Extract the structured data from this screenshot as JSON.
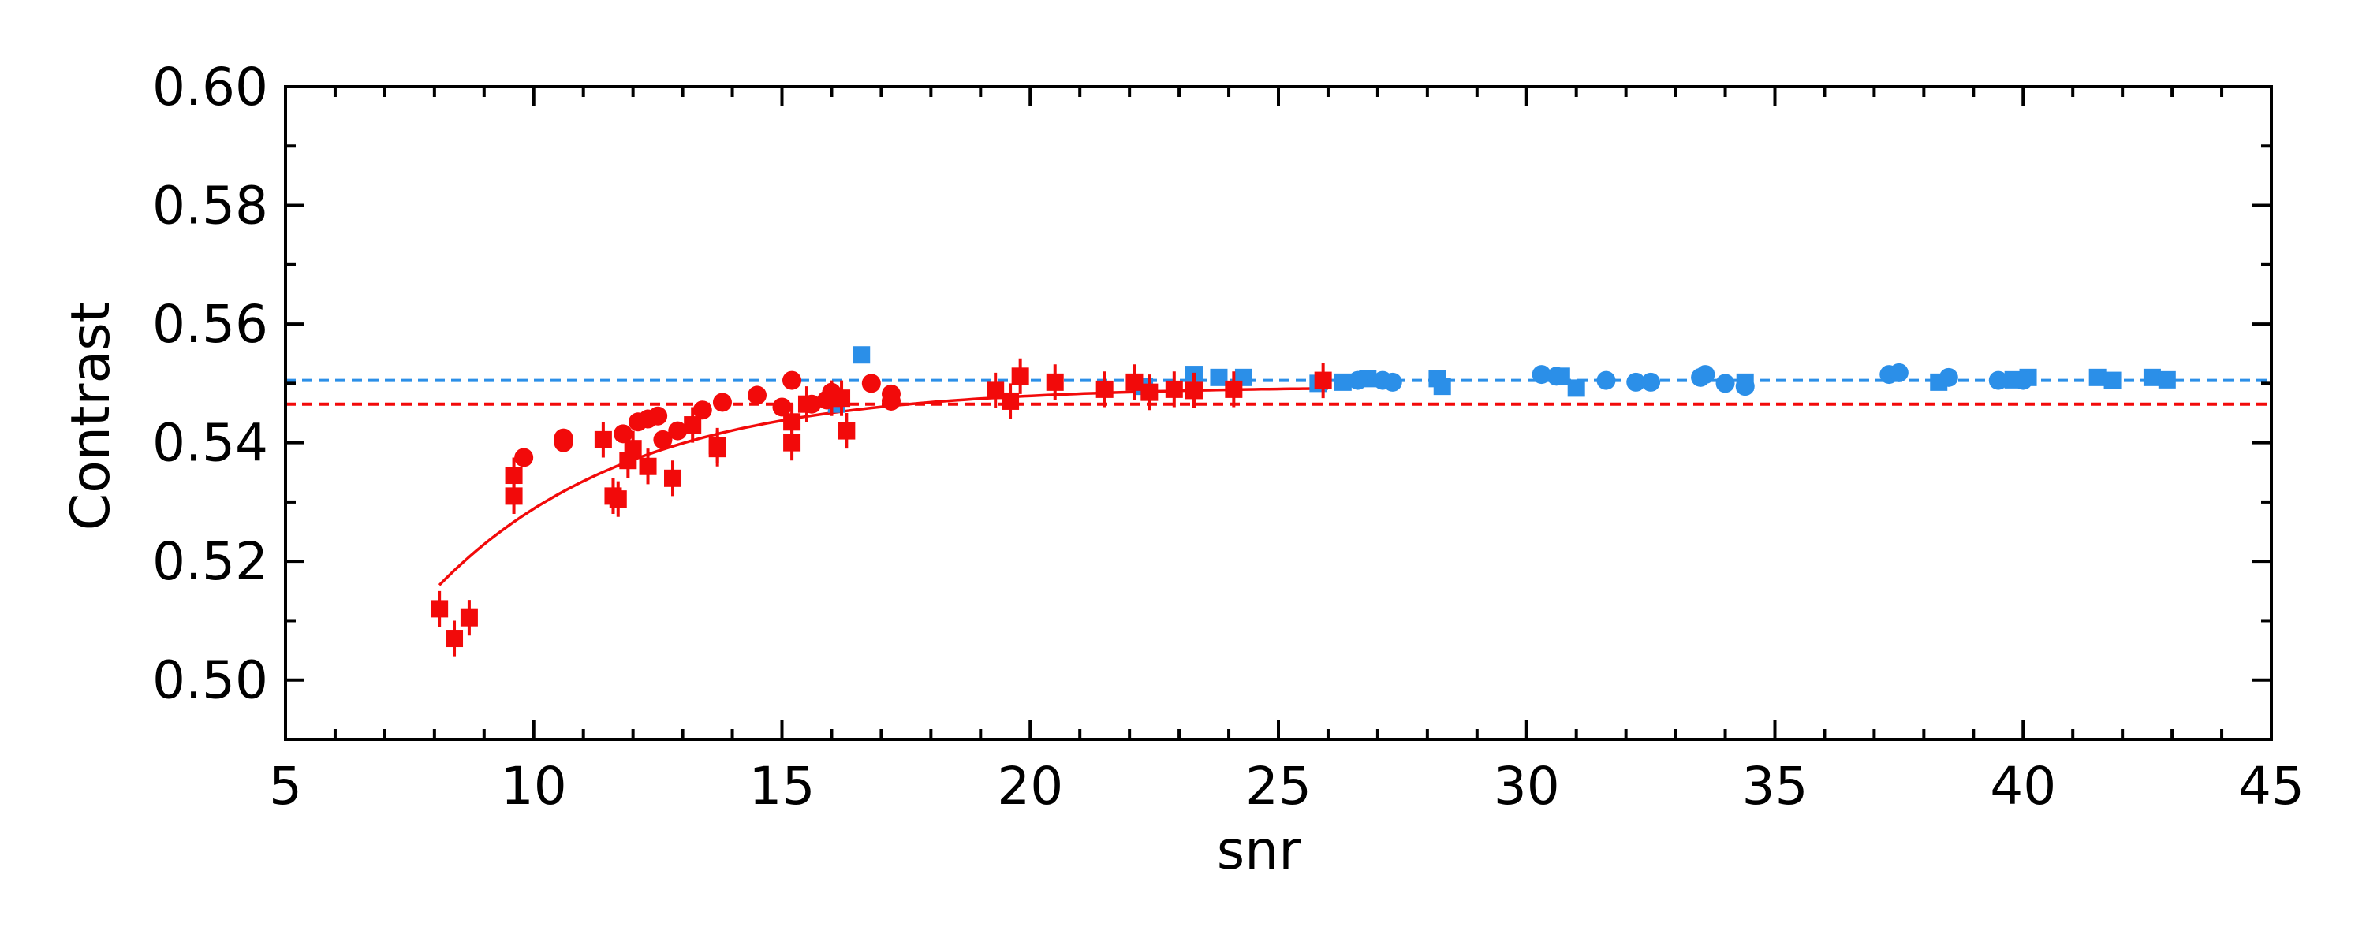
{
  "chart_data": {
    "type": "scatter",
    "title": "",
    "xlabel": "snr",
    "ylabel": "Contrast",
    "xlim": [
      5,
      45
    ],
    "ylim": [
      0.49,
      0.6
    ],
    "x_ticks": [
      5,
      10,
      15,
      20,
      25,
      30,
      35,
      40,
      45
    ],
    "x_tick_labels": [
      "5",
      "10",
      "15",
      "20",
      "25",
      "30",
      "35",
      "40",
      "45"
    ],
    "y_ticks": [
      0.5,
      0.52,
      0.54,
      0.56,
      0.58,
      0.6
    ],
    "y_tick_labels": [
      "0.50",
      "0.52",
      "0.54",
      "0.56",
      "0.58",
      "0.60"
    ],
    "x_minor_step": 1,
    "y_minor_step": 0.01,
    "grid": false,
    "legend": "none",
    "series": [
      {
        "color": "#2b8fe8",
        "marker": "square",
        "points": [
          [
            16.1,
            0.5465
          ],
          [
            16.6,
            0.5548
          ],
          [
            22.3,
            0.5495
          ],
          [
            23.3,
            0.5515
          ],
          [
            23.8,
            0.551
          ],
          [
            24.3,
            0.551
          ],
          [
            25.8,
            0.55
          ],
          [
            26.3,
            0.5502
          ],
          [
            26.8,
            0.5508
          ],
          [
            28.2,
            0.5508
          ],
          [
            28.3,
            0.5495
          ],
          [
            30.7,
            0.5512
          ],
          [
            31.0,
            0.5492
          ],
          [
            34.4,
            0.5502
          ],
          [
            38.3,
            0.5502
          ],
          [
            39.8,
            0.5506
          ],
          [
            40.1,
            0.551
          ],
          [
            41.5,
            0.551
          ],
          [
            41.8,
            0.5505
          ],
          [
            42.6,
            0.551
          ],
          [
            42.9,
            0.5506
          ]
        ]
      },
      {
        "color": "#2b8fe8",
        "marker": "circle",
        "points": [
          [
            26.6,
            0.5505
          ],
          [
            27.1,
            0.5505
          ],
          [
            27.3,
            0.5502
          ],
          [
            30.3,
            0.5515
          ],
          [
            30.6,
            0.5512
          ],
          [
            31.6,
            0.5505
          ],
          [
            32.2,
            0.5502
          ],
          [
            32.5,
            0.5502
          ],
          [
            33.5,
            0.551
          ],
          [
            33.6,
            0.5515
          ],
          [
            34.0,
            0.55
          ],
          [
            34.4,
            0.5495
          ],
          [
            37.3,
            0.5515
          ],
          [
            37.5,
            0.5518
          ],
          [
            38.5,
            0.551
          ],
          [
            39.5,
            0.5505
          ],
          [
            40.0,
            0.5505
          ]
        ]
      },
      {
        "color": "#f20a0a",
        "marker": "square",
        "error": 0.003,
        "points": [
          [
            8.1,
            0.512
          ],
          [
            8.4,
            0.507
          ],
          [
            8.7,
            0.5105
          ],
          [
            9.6,
            0.5345
          ],
          [
            9.6,
            0.531
          ],
          [
            11.4,
            0.5405
          ],
          [
            11.6,
            0.531
          ],
          [
            11.7,
            0.5305
          ],
          [
            11.9,
            0.537
          ],
          [
            12.0,
            0.539
          ],
          [
            12.3,
            0.536
          ],
          [
            12.8,
            0.534
          ],
          [
            13.2,
            0.543
          ],
          [
            13.7,
            0.539
          ],
          [
            13.7,
            0.5395
          ],
          [
            15.2,
            0.54
          ],
          [
            15.2,
            0.5435
          ],
          [
            15.5,
            0.5465
          ],
          [
            16.0,
            0.5475
          ],
          [
            16.2,
            0.5475
          ],
          [
            16.3,
            0.542
          ],
          [
            19.3,
            0.5488
          ],
          [
            19.6,
            0.547
          ],
          [
            19.8,
            0.5512
          ],
          [
            20.5,
            0.5502
          ],
          [
            21.5,
            0.549
          ],
          [
            22.1,
            0.5502
          ],
          [
            22.4,
            0.5485
          ],
          [
            22.9,
            0.549
          ],
          [
            23.3,
            0.5488
          ],
          [
            24.1,
            0.549
          ],
          [
            25.9,
            0.5505
          ]
        ]
      },
      {
        "color": "#f20a0a",
        "marker": "circle",
        "points": [
          [
            9.8,
            0.5375
          ],
          [
            10.6,
            0.5408
          ],
          [
            10.6,
            0.54
          ],
          [
            11.8,
            0.5415
          ],
          [
            12.1,
            0.5435
          ],
          [
            12.3,
            0.544
          ],
          [
            12.5,
            0.5445
          ],
          [
            12.6,
            0.5405
          ],
          [
            12.9,
            0.542
          ],
          [
            13.4,
            0.5455
          ],
          [
            13.8,
            0.5468
          ],
          [
            14.5,
            0.548
          ],
          [
            15.0,
            0.546
          ],
          [
            15.2,
            0.5505
          ],
          [
            15.6,
            0.5465
          ],
          [
            15.9,
            0.5472
          ],
          [
            16.0,
            0.5485
          ],
          [
            16.8,
            0.55
          ],
          [
            17.2,
            0.5482
          ],
          [
            17.2,
            0.547
          ]
        ]
      }
    ],
    "reference_lines": [
      {
        "y": 0.5505,
        "color": "#2b8fe8",
        "style": "dashed"
      },
      {
        "y": 0.5465,
        "color": "#f20a0a",
        "style": "dashed"
      }
    ],
    "fit_curve": {
      "color": "#f20a0a",
      "x_range": [
        8.1,
        26.0
      ],
      "asymptote": 0.5495,
      "amplitude": 0.0335,
      "decay": 0.255
    }
  }
}
